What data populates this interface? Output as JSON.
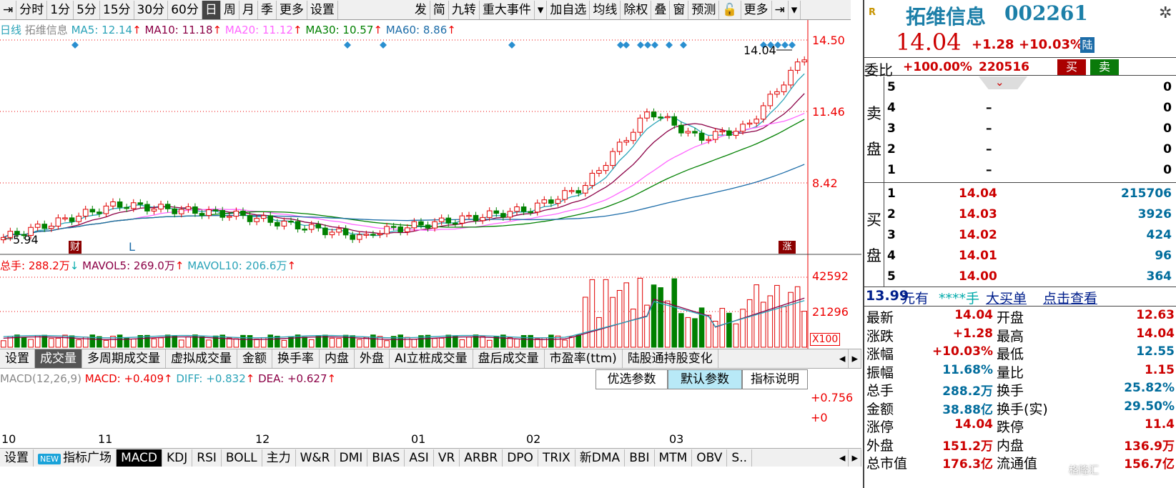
{
  "toolbar": {
    "left_icon": "⇥",
    "periods": [
      "分时",
      "1分",
      "5分",
      "15分",
      "30分",
      "60分",
      "日",
      "周",
      "月",
      "季",
      "更多",
      "设置"
    ],
    "selected_period": "日",
    "right_items": [
      "发",
      "简",
      "九转",
      "重大事件",
      "▾",
      "加自选",
      "均线",
      "除权",
      "叠",
      "窗",
      "预测",
      "🔓",
      "更多",
      "⇥",
      "▾"
    ]
  },
  "main_legend": {
    "period": "日线",
    "name": "拓维信息",
    "ma5": "MA5: 12.14",
    "ma10": "MA10: 11.18",
    "ma20": "MA20: 11.12",
    "ma30": "MA30: 10.57",
    "ma60": "MA60: 8.86",
    "arrow": "↑"
  },
  "price_axis": [
    "14.50",
    "11.46",
    "8.42"
  ],
  "markers": {
    "high_label": "14.04",
    "low_label": "5.94",
    "cai": "财",
    "L": "L",
    "zhangting": "涨"
  },
  "volume_legend": {
    "total": "总手: 288.2万",
    "total_arrow": "↓",
    "mavol5": "MAVOL5: 269.0万",
    "mavol10": "MAVOL10: 206.6万",
    "arrow": "↑"
  },
  "volume_axis": [
    "42592",
    "21296",
    "X100"
  ],
  "indicator_tabs": [
    "设置",
    "成交量",
    "多周期成交量",
    "虚拟成交量",
    "金额",
    "换手率",
    "内盘",
    "外盘",
    "AI立桩成交量",
    "盘后成交量",
    "市盈率(ttm)",
    "陆股通持股变化"
  ],
  "indicator_selected": "成交量",
  "macd_legend": {
    "name": "MACD(12,26,9)",
    "macd": "MACD: +0.409",
    "diff": "DIFF: +0.832",
    "dea": "DEA: +0.627",
    "arrow": "↑"
  },
  "macd_params": [
    "优选参数",
    "默认参数",
    "指标说明"
  ],
  "macd_axis": [
    "+0.756",
    "+0"
  ],
  "date_axis": [
    "10",
    "11",
    "12",
    "01",
    "02",
    "03"
  ],
  "bottom_tabs": [
    "设置",
    "指标广场",
    "MACD",
    "KDJ",
    "RSI",
    "BOLL",
    "主力",
    "W&R",
    "DMI",
    "BIAS",
    "ASI",
    "VR",
    "ARBR",
    "DPO",
    "TRIX",
    "新DMA",
    "BBI",
    "MTM",
    "OBV",
    "S.."
  ],
  "bottom_new_badge": "NEW",
  "bottom_selected": "MACD",
  "stock": {
    "badge": "R",
    "name": "拓维信息",
    "code": "002261",
    "price": "14.04",
    "change": "+1.28",
    "pct": "+10.03%",
    "tag": "陆"
  },
  "weibi": {
    "label": "委比",
    "pct": "+100.00%",
    "vol": "220516",
    "buy": "买",
    "sell": "卖"
  },
  "sell_label": [
    "卖",
    "盘"
  ],
  "sell_orders": [
    {
      "lv": "5",
      "price": "",
      "vol": "0"
    },
    {
      "lv": "4",
      "price": "–",
      "vol": "0"
    },
    {
      "lv": "3",
      "price": "–",
      "vol": "0"
    },
    {
      "lv": "2",
      "price": "–",
      "vol": "0"
    },
    {
      "lv": "1",
      "price": "–",
      "vol": "0"
    }
  ],
  "buy_label": [
    "买",
    "盘"
  ],
  "buy_orders": [
    {
      "lv": "1",
      "price": "14.04",
      "vol": "215706"
    },
    {
      "lv": "2",
      "price": "14.03",
      "vol": "3926"
    },
    {
      "lv": "3",
      "price": "14.02",
      "vol": "424"
    },
    {
      "lv": "4",
      "price": "14.01",
      "vol": "96"
    },
    {
      "lv": "5",
      "price": "14.00",
      "vol": "364"
    }
  ],
  "big_order": {
    "price": "13.99",
    "unit": "元有",
    "vol": "****手",
    "label": "大买单",
    "action": "点击查看"
  },
  "quote": [
    {
      "l": "最新",
      "v": "14.04",
      "l2": "开盘",
      "v2": "12.63"
    },
    {
      "l": "涨跌",
      "v": "+1.28",
      "l2": "最高",
      "v2": "14.04"
    },
    {
      "l": "涨幅",
      "v": "+10.03%",
      "l2": "最低",
      "v2": "12.55"
    },
    {
      "l": "振幅",
      "v": "11.68%",
      "l2": "量比",
      "v2": "1.15"
    },
    {
      "l": "总手",
      "v": "288.2万",
      "l2": "换手",
      "v2": "25.82%"
    },
    {
      "l": "金额",
      "v": "38.88亿",
      "l2": "换手(实)",
      "v2": "29.50%"
    },
    {
      "l": "涨停",
      "v": "14.04",
      "l2": "跌停",
      "v2": "11.4"
    },
    {
      "l": "外盘",
      "v": "151.2万",
      "l2": "内盘",
      "v2": "136.9万"
    },
    {
      "l": "总市值",
      "v": "176.3亿",
      "l2": "流通值",
      "v2": "156.7亿"
    }
  ],
  "watermark": "格隆汇",
  "colors": {
    "up": "#e00000",
    "down": "#008000",
    "ma5": "#2aa3b8",
    "ma10": "#8b0046",
    "ma20": "#ff66ff",
    "ma30": "#008000",
    "ma60": "#1c6ca8"
  }
}
